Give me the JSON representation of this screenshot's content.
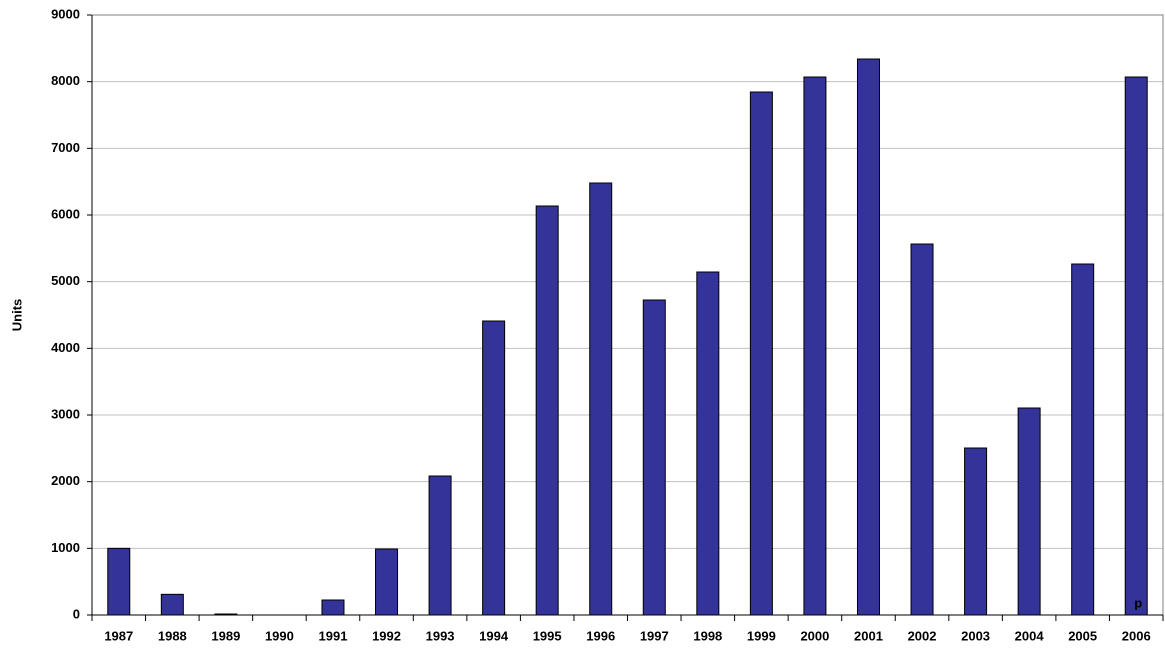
{
  "chart_data": {
    "type": "bar",
    "y_label": "Units",
    "annotation": "p",
    "categories": [
      "1987",
      "1988",
      "1989",
      "1990",
      "1991",
      "1992",
      "1993",
      "1994",
      "1995",
      "1996",
      "1997",
      "1998",
      "1999",
      "2000",
      "2001",
      "2002",
      "2003",
      "2004",
      "2005",
      "2006"
    ],
    "values": [
      1000,
      310,
      15,
      0,
      225,
      990,
      2085,
      4410,
      6135,
      6480,
      4725,
      5145,
      7845,
      8070,
      8340,
      5565,
      2505,
      3105,
      5265,
      8070
    ],
    "color": "#333399",
    "ylim": [
      0,
      9000
    ],
    "yticks": [
      0,
      1000,
      2000,
      3000,
      4000,
      5000,
      6000,
      7000,
      8000,
      9000
    ],
    "grid": true
  }
}
